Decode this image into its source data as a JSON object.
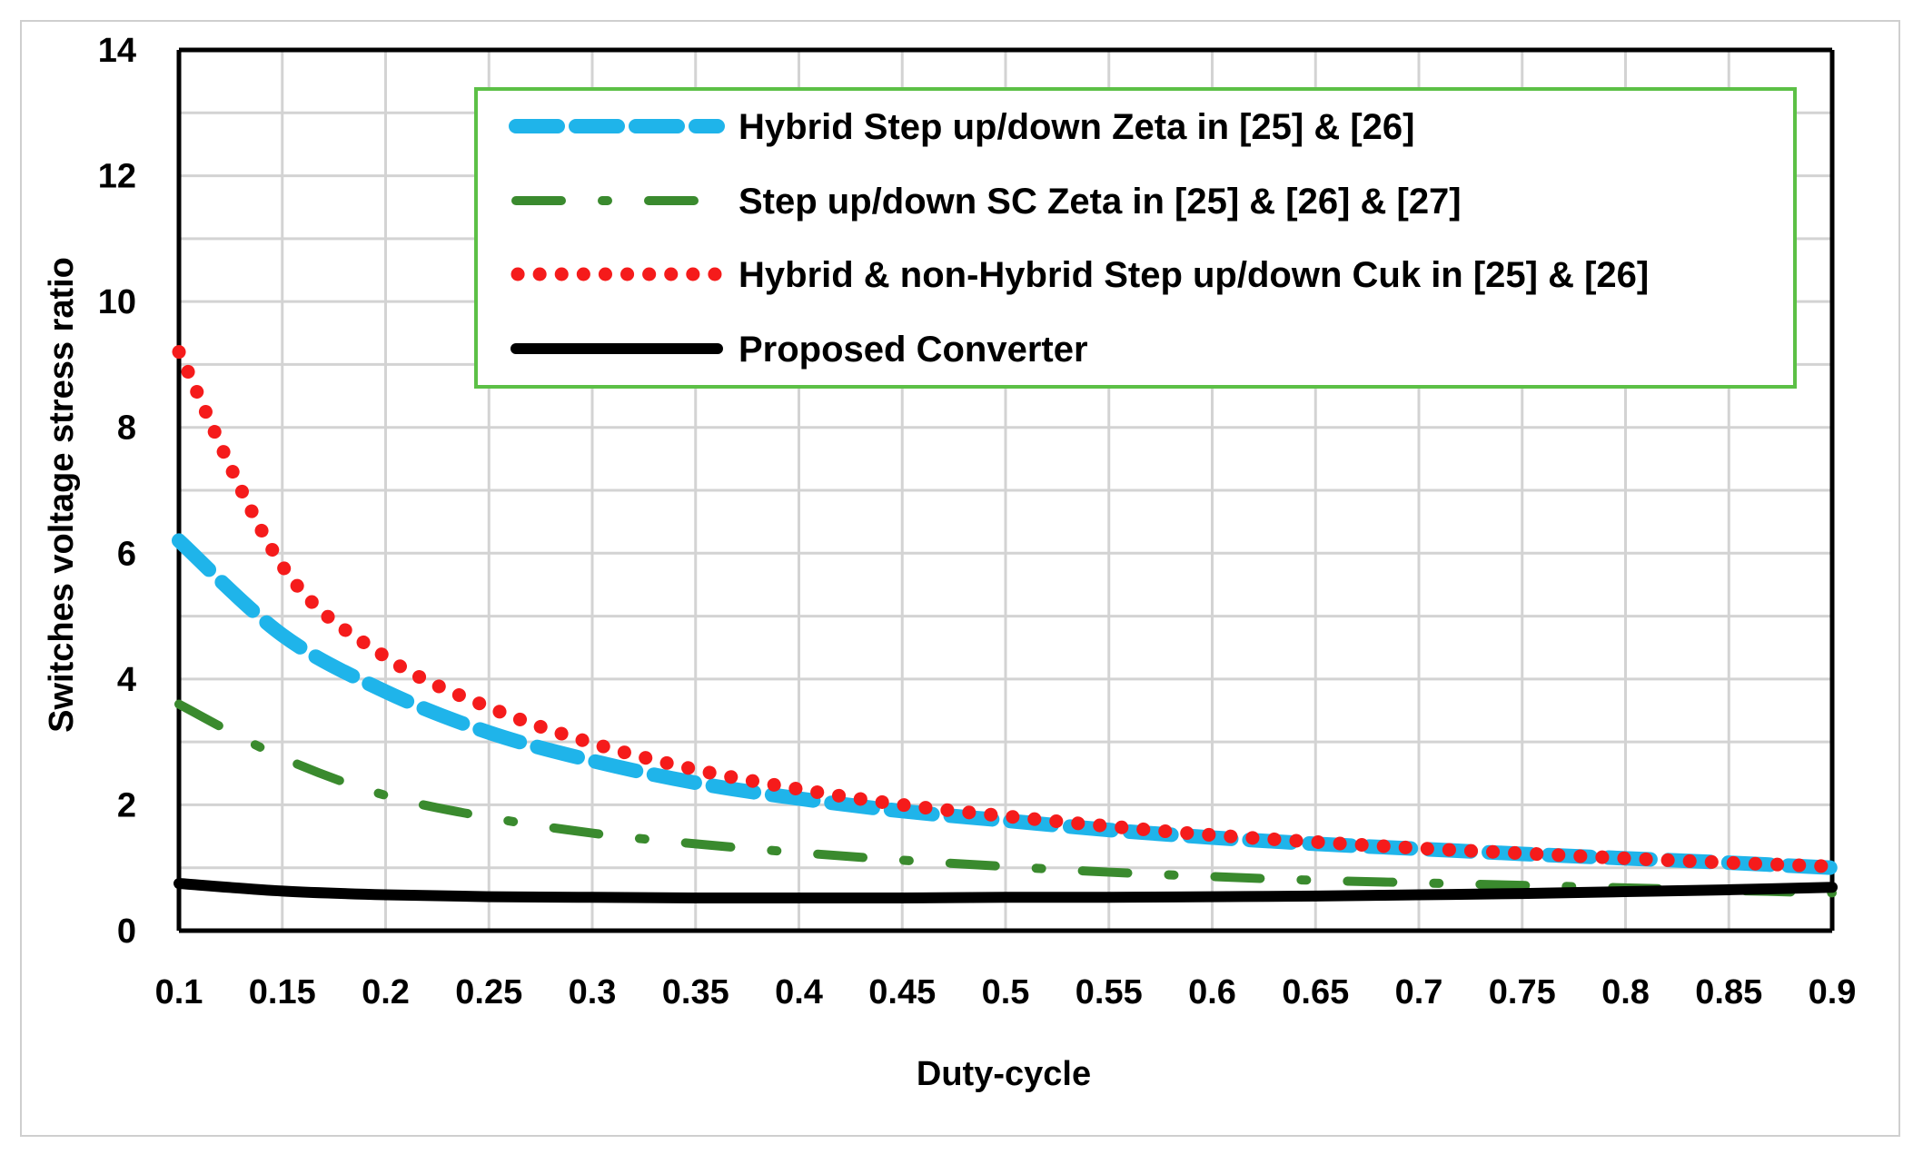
{
  "chart_data": {
    "type": "line",
    "title": "",
    "xlabel": "Duty-cycle",
    "ylabel": "Switches voltage stress ratio",
    "xlim": [
      0.1,
      0.9
    ],
    "ylim": [
      0,
      14
    ],
    "x_ticks": [
      "0.1",
      "0.15",
      "0.2",
      "0.25",
      "0.3",
      "0.35",
      "0.4",
      "0.45",
      "0.5",
      "0.55",
      "0.6",
      "0.65",
      "0.7",
      "0.75",
      "0.8",
      "0.85",
      "0.9"
    ],
    "y_ticks": [
      "0",
      "2",
      "4",
      "6",
      "8",
      "10",
      "12",
      "14"
    ],
    "grid": true,
    "legend_position": "top-right",
    "x": [
      0.1,
      0.15,
      0.2,
      0.25,
      0.3,
      0.35,
      0.4,
      0.45,
      0.5,
      0.55,
      0.6,
      0.65,
      0.7,
      0.75,
      0.8,
      0.85,
      0.9
    ],
    "series": [
      {
        "name": "Hybrid Step up/down Zeta in [25] & [26]",
        "color": "#1fb4ea",
        "style": "long-dash",
        "values": [
          6.2,
          4.7,
          3.8,
          3.15,
          2.7,
          2.35,
          2.1,
          1.9,
          1.75,
          1.6,
          1.48,
          1.38,
          1.3,
          1.22,
          1.15,
          1.08,
          1.0
        ]
      },
      {
        "name": "Step up/down SC Zeta in [25] & [26] & [27]",
        "color": "#3a8a2e",
        "style": "dash-dot",
        "values": [
          3.6,
          2.75,
          2.15,
          1.8,
          1.55,
          1.38,
          1.24,
          1.12,
          1.02,
          0.93,
          0.86,
          0.8,
          0.76,
          0.72,
          0.68,
          0.64,
          0.6
        ]
      },
      {
        "name": "Hybrid & non-Hybrid Step up/down Cuk in [25] & [26]",
        "color": "#f51b1b",
        "style": "dotted",
        "values": [
          9.2,
          5.8,
          4.35,
          3.55,
          2.98,
          2.56,
          2.25,
          2.0,
          1.82,
          1.66,
          1.52,
          1.41,
          1.31,
          1.23,
          1.15,
          1.08,
          1.02
        ]
      },
      {
        "name": "Proposed Converter",
        "color": "#000000",
        "style": "solid",
        "values": [
          0.75,
          0.63,
          0.57,
          0.54,
          0.53,
          0.52,
          0.52,
          0.52,
          0.53,
          0.53,
          0.54,
          0.55,
          0.57,
          0.59,
          0.62,
          0.65,
          0.69
        ]
      }
    ]
  },
  "colors": {
    "legend_border": "#5cc046",
    "grid": "#d3d3d3",
    "axis": "#000000"
  }
}
